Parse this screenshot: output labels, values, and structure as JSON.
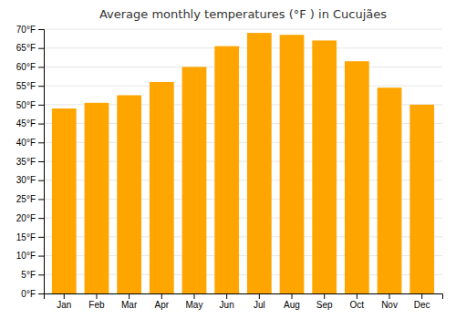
{
  "chart_data": {
    "type": "bar",
    "title": "Average monthly temperatures (°F ) in Cucujães",
    "categories": [
      "Jan",
      "Feb",
      "Mar",
      "Apr",
      "May",
      "Jun",
      "Jul",
      "Aug",
      "Sep",
      "Oct",
      "Nov",
      "Dec"
    ],
    "values": [
      49,
      50.5,
      52.5,
      56,
      60,
      65.5,
      69,
      68.5,
      67,
      61.5,
      54.5,
      50
    ],
    "color": "#FFA500",
    "ylim": [
      0,
      70
    ],
    "yticks": [
      {
        "value": 0,
        "label": "0°F"
      },
      {
        "value": 5,
        "label": "5°F"
      },
      {
        "value": 10,
        "label": "10°F"
      },
      {
        "value": 15,
        "label": "15°F"
      },
      {
        "value": 20,
        "label": "20°F"
      },
      {
        "value": 25,
        "label": "25°F"
      },
      {
        "value": 30,
        "label": "30°F"
      },
      {
        "value": 35,
        "label": "35°F"
      },
      {
        "value": 40,
        "label": "40°F"
      },
      {
        "value": 45,
        "label": "45°F"
      },
      {
        "value": 50,
        "label": "50°F"
      },
      {
        "value": 55,
        "label": "55°F"
      },
      {
        "value": 60,
        "label": "60°F"
      },
      {
        "value": 65,
        "label": "65°F"
      },
      {
        "value": 70,
        "label": "70°F"
      }
    ],
    "grid": true
  }
}
